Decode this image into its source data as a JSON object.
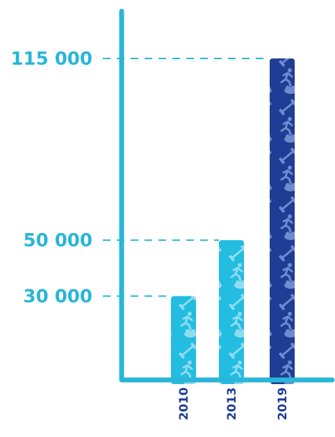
{
  "chart_data": {
    "type": "bar",
    "title": "",
    "xlabel": "",
    "ylabel": "",
    "categories": [
      "2010",
      "2013",
      "2019"
    ],
    "values": [
      30000,
      50000,
      115000
    ],
    "y_ticks": [
      {
        "value": 30000,
        "label": "30 000"
      },
      {
        "value": 50000,
        "label": "50 000"
      },
      {
        "value": 115000,
        "label": "115 000"
      }
    ],
    "ylim": [
      0,
      135000
    ],
    "grid": false,
    "legend": "none",
    "highlight_category": "2019",
    "pattern": "sport-icons"
  },
  "colors": {
    "axis": "#29b6d8",
    "label": "#29b6d8",
    "bar": "#22bde0",
    "bar_highlight": "#1f3d94",
    "icon_on_bar": "#8fdcef",
    "icon_on_highlight": "#6f8ccf",
    "guide": "#29b6d8"
  }
}
